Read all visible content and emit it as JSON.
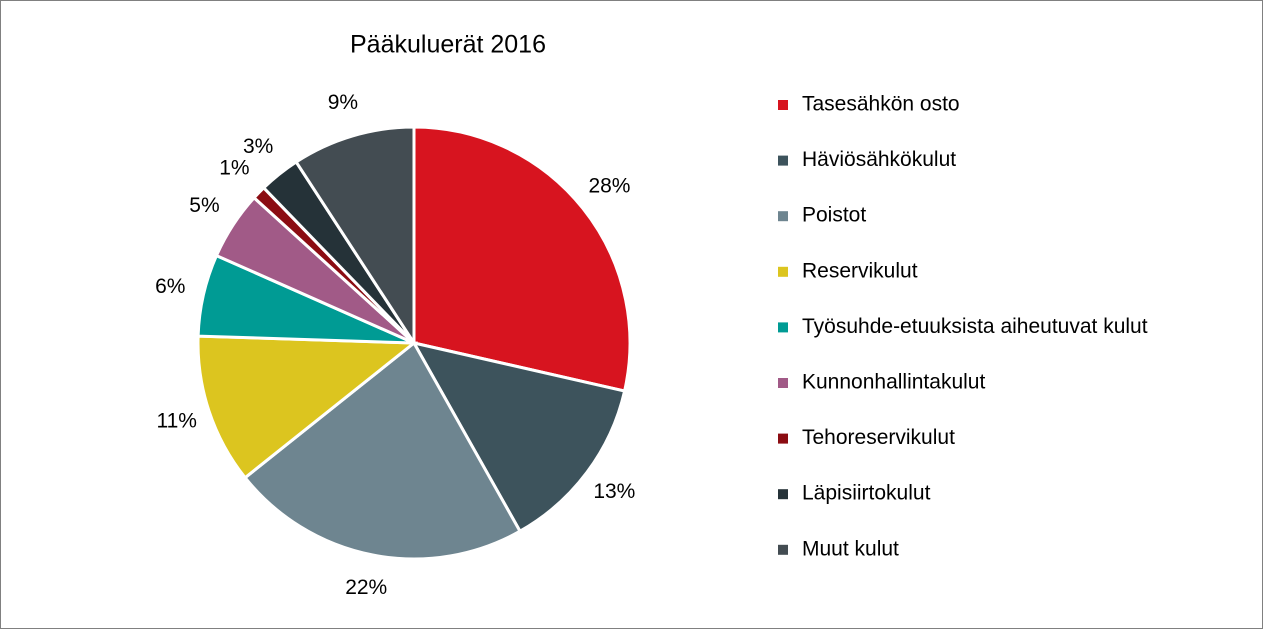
{
  "chart_data": {
    "type": "pie",
    "title": "Pääkuluerät 2016",
    "categories": [
      "Tasesähkön osto",
      "Häviösähkökulut",
      "Poistot",
      "Reservikulut",
      "Työsuhde-etuuksista aiheutuvat kulut",
      "Kunnonhallintakulut",
      "Tehoreservikulut",
      "Läpisiirtokulut",
      "Muut kulut"
    ],
    "values": [
      28,
      13,
      22,
      11,
      6,
      5,
      1,
      3,
      9
    ],
    "value_labels": [
      "28%",
      "13%",
      "22%",
      "11%",
      "6%",
      "5%",
      "1%",
      "3%",
      "9%"
    ],
    "colors": [
      "#d7141f",
      "#3d535c",
      "#6e8590",
      "#dcc51f",
      "#009b94",
      "#a15a87",
      "#8b0c12",
      "#253238",
      "#434c52"
    ],
    "legend": "right"
  }
}
